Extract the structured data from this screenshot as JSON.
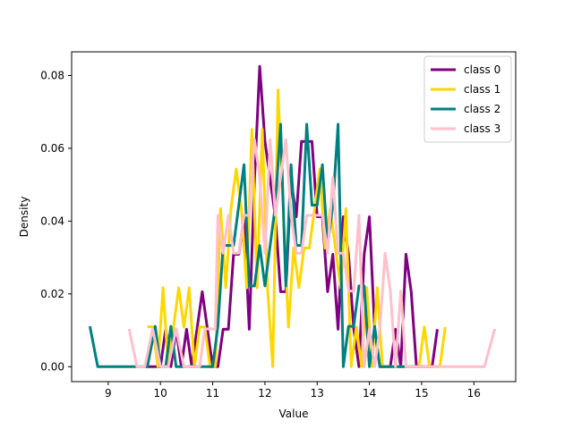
{
  "chart_data": {
    "type": "line",
    "title": "",
    "xlabel": "Value",
    "ylabel": "Density",
    "xlim": [
      8.3,
      16.8
    ],
    "ylim": [
      -0.0041,
      0.0865
    ],
    "xticks": [
      9,
      10,
      11,
      12,
      13,
      14,
      15,
      16
    ],
    "yticks": [
      0.0,
      0.02,
      0.04,
      0.06,
      0.08
    ],
    "ytick_labels": [
      "0.00",
      "0.02",
      "0.04",
      "0.06",
      "0.08"
    ],
    "grid": false,
    "legend_position": "top-right",
    "series": [
      {
        "name": "class 0",
        "color": "#800080",
        "points": [
          [
            9.7,
            0.0
          ],
          [
            9.8,
            0.0
          ],
          [
            9.9,
            0.0
          ],
          [
            10.0,
            0.0
          ],
          [
            10.1,
            0.0103
          ],
          [
            10.2,
            0.0
          ],
          [
            10.3,
            0.0103
          ],
          [
            10.4,
            0.0
          ],
          [
            10.5,
            0.0103
          ],
          [
            10.6,
            0.0
          ],
          [
            10.7,
            0.0103
          ],
          [
            10.8,
            0.0206
          ],
          [
            10.9,
            0.0103
          ],
          [
            11.0,
            0.0
          ],
          [
            11.1,
            0.0
          ],
          [
            11.2,
            0.0103
          ],
          [
            11.3,
            0.0103
          ],
          [
            11.4,
            0.0309
          ],
          [
            11.5,
            0.0309
          ],
          [
            11.6,
            0.0412
          ],
          [
            11.7,
            0.0103
          ],
          [
            11.8,
            0.0515
          ],
          [
            11.9,
            0.0825
          ],
          [
            12.0,
            0.0619
          ],
          [
            12.1,
            0.0515
          ],
          [
            12.2,
            0.0412
          ],
          [
            12.3,
            0.0206
          ],
          [
            12.4,
            0.0206
          ],
          [
            12.5,
            0.0515
          ],
          [
            12.6,
            0.0412
          ],
          [
            12.7,
            0.0619
          ],
          [
            12.8,
            0.0619
          ],
          [
            12.9,
            0.0619
          ],
          [
            13.0,
            0.0412
          ],
          [
            13.1,
            0.0412
          ],
          [
            13.2,
            0.0206
          ],
          [
            13.3,
            0.0309
          ],
          [
            13.4,
            0.0103
          ],
          [
            13.5,
            0.0412
          ],
          [
            13.6,
            0.0309
          ],
          [
            13.7,
            0.0103
          ],
          [
            13.8,
            0.0
          ],
          [
            13.9,
            0.0309
          ],
          [
            14.0,
            0.0412
          ],
          [
            14.1,
            0.0103
          ],
          [
            14.2,
            0.0
          ],
          [
            14.3,
            0.0
          ],
          [
            14.4,
            0.0
          ],
          [
            14.5,
            0.0103
          ],
          [
            14.6,
            0.0
          ],
          [
            14.7,
            0.0309
          ],
          [
            14.8,
            0.0206
          ],
          [
            14.9,
            0.0
          ],
          [
            15.0,
            0.0
          ],
          [
            15.1,
            0.0
          ],
          [
            15.2,
            0.0
          ],
          [
            15.3,
            0.0103
          ]
        ]
      },
      {
        "name": "class 1",
        "color": "#FFD700",
        "points": [
          [
            9.75,
            0.011
          ],
          [
            9.85,
            0.011
          ],
          [
            9.95,
            0.0
          ],
          [
            10.05,
            0.0217
          ],
          [
            10.15,
            0.0
          ],
          [
            10.25,
            0.0109
          ],
          [
            10.35,
            0.0217
          ],
          [
            10.45,
            0.0109
          ],
          [
            10.55,
            0.0217
          ],
          [
            10.65,
            0.0
          ],
          [
            10.75,
            0.0109
          ],
          [
            10.85,
            0.0109
          ],
          [
            10.95,
            0.0
          ],
          [
            11.05,
            0.0
          ],
          [
            11.15,
            0.0434
          ],
          [
            11.25,
            0.0217
          ],
          [
            11.35,
            0.0434
          ],
          [
            11.45,
            0.0543
          ],
          [
            11.55,
            0.0434
          ],
          [
            11.65,
            0.0217
          ],
          [
            11.75,
            0.0652
          ],
          [
            11.85,
            0.0217
          ],
          [
            11.95,
            0.0652
          ],
          [
            12.05,
            0.0217
          ],
          [
            12.15,
            0.0
          ],
          [
            12.25,
            0.076
          ],
          [
            12.35,
            0.0434
          ],
          [
            12.45,
            0.0109
          ],
          [
            12.55,
            0.0326
          ],
          [
            12.65,
            0.0217
          ],
          [
            12.75,
            0.0326
          ],
          [
            12.85,
            0.0326
          ],
          [
            12.95,
            0.0434
          ],
          [
            13.05,
            0.0543
          ],
          [
            13.15,
            0.0326
          ],
          [
            13.25,
            0.0434
          ],
          [
            13.35,
            0.0326
          ],
          [
            13.45,
            0.0217
          ],
          [
            13.55,
            0.0434
          ],
          [
            13.65,
            0.0
          ],
          [
            13.75,
            0.0109
          ],
          [
            13.85,
            0.0
          ],
          [
            13.95,
            0.0217
          ],
          [
            14.05,
            0.0
          ],
          [
            14.15,
            0.0217
          ],
          [
            14.25,
            0.0
          ],
          [
            14.35,
            0.0
          ],
          [
            14.45,
            0.0
          ],
          [
            14.55,
            0.0
          ],
          [
            14.65,
            0.0
          ],
          [
            14.75,
            0.0
          ],
          [
            14.85,
            0.0
          ],
          [
            14.95,
            0.0
          ],
          [
            15.05,
            0.0109
          ],
          [
            15.15,
            0.0
          ],
          [
            15.25,
            0.0
          ],
          [
            15.35,
            0.0
          ],
          [
            15.45,
            0.0109
          ]
        ]
      },
      {
        "name": "class 2",
        "color": "#008080",
        "points": [
          [
            8.65,
            0.0111
          ],
          [
            8.8,
            0.0
          ],
          [
            9.0,
            0.0
          ],
          [
            9.2,
            0.0
          ],
          [
            9.4,
            0.0
          ],
          [
            9.6,
            0.0
          ],
          [
            9.75,
            0.0
          ],
          [
            9.9,
            0.0111
          ],
          [
            10.0,
            0.0
          ],
          [
            10.1,
            0.0
          ],
          [
            10.2,
            0.0111
          ],
          [
            10.3,
            0.0
          ],
          [
            10.4,
            0.0
          ],
          [
            10.5,
            0.0
          ],
          [
            10.6,
            0.0
          ],
          [
            10.7,
            0.0
          ],
          [
            10.8,
            0.0
          ],
          [
            10.9,
            0.0
          ],
          [
            11.0,
            0.0
          ],
          [
            11.1,
            0.0111
          ],
          [
            11.2,
            0.0333
          ],
          [
            11.3,
            0.0333
          ],
          [
            11.4,
            0.0333
          ],
          [
            11.5,
            0.0444
          ],
          [
            11.6,
            0.0555
          ],
          [
            11.7,
            0.0222
          ],
          [
            11.8,
            0.0222
          ],
          [
            11.9,
            0.0333
          ],
          [
            12.0,
            0.0222
          ],
          [
            12.1,
            0.0333
          ],
          [
            12.2,
            0.0444
          ],
          [
            12.3,
            0.0666
          ],
          [
            12.4,
            0.0222
          ],
          [
            12.5,
            0.0555
          ],
          [
            12.6,
            0.0333
          ],
          [
            12.7,
            0.0333
          ],
          [
            12.8,
            0.0666
          ],
          [
            12.9,
            0.0444
          ],
          [
            13.0,
            0.0444
          ],
          [
            13.1,
            0.0555
          ],
          [
            13.2,
            0.0333
          ],
          [
            13.3,
            0.0444
          ],
          [
            13.4,
            0.0666
          ],
          [
            13.5,
            0.0
          ],
          [
            13.6,
            0.0111
          ],
          [
            13.7,
            0.0111
          ],
          [
            13.8,
            0.0222
          ],
          [
            13.9,
            0.0222
          ],
          [
            14.0,
            0.0
          ],
          [
            14.1,
            0.0111
          ],
          [
            14.2,
            0.0
          ],
          [
            14.3,
            0.0
          ],
          [
            14.4,
            0.0
          ],
          [
            14.5,
            0.0
          ],
          [
            14.6,
            0.0
          ],
          [
            14.7,
            0.0
          ],
          [
            14.8,
            0.0
          ],
          [
            14.9,
            0.0
          ]
        ]
      },
      {
        "name": "class 3",
        "color": "#FFC0CB",
        "points": [
          [
            9.4,
            0.0104
          ],
          [
            9.55,
            0.0
          ],
          [
            9.7,
            0.0
          ],
          [
            9.85,
            0.0104
          ],
          [
            10.0,
            0.0
          ],
          [
            10.15,
            0.0
          ],
          [
            10.3,
            0.0104
          ],
          [
            10.45,
            0.0
          ],
          [
            10.6,
            0.0
          ],
          [
            10.75,
            0.0
          ],
          [
            10.85,
            0.0104
          ],
          [
            10.95,
            0.0104
          ],
          [
            11.05,
            0.0104
          ],
          [
            11.1,
            0.0416
          ],
          [
            11.2,
            0.0312
          ],
          [
            11.3,
            0.0416
          ],
          [
            11.4,
            0.0312
          ],
          [
            11.5,
            0.0312
          ],
          [
            11.6,
            0.0416
          ],
          [
            11.7,
            0.0416
          ],
          [
            11.8,
            0.0624
          ],
          [
            11.9,
            0.052
          ],
          [
            12.0,
            0.0312
          ],
          [
            12.1,
            0.0624
          ],
          [
            12.2,
            0.0416
          ],
          [
            12.3,
            0.052
          ],
          [
            12.4,
            0.0624
          ],
          [
            12.5,
            0.0416
          ],
          [
            12.6,
            0.0312
          ],
          [
            12.7,
            0.0312
          ],
          [
            12.8,
            0.0416
          ],
          [
            12.9,
            0.0416
          ],
          [
            13.0,
            0.0416
          ],
          [
            13.1,
            0.0416
          ],
          [
            13.2,
            0.0312
          ],
          [
            13.3,
            0.052
          ],
          [
            13.4,
            0.0312
          ],
          [
            13.5,
            0.0312
          ],
          [
            13.6,
            0.0208
          ],
          [
            13.7,
            0.0208
          ],
          [
            13.8,
            0.0416
          ],
          [
            13.9,
            0.0
          ],
          [
            14.0,
            0.0104
          ],
          [
            14.1,
            0.0
          ],
          [
            14.2,
            0.0104
          ],
          [
            14.3,
            0.0312
          ],
          [
            14.4,
            0.0208
          ],
          [
            14.5,
            0.0
          ],
          [
            14.6,
            0.0208
          ],
          [
            14.7,
            0.0
          ],
          [
            14.8,
            0.0
          ],
          [
            14.9,
            0.0
          ],
          [
            15.0,
            0.0
          ],
          [
            15.2,
            0.0
          ],
          [
            15.4,
            0.0
          ],
          [
            15.6,
            0.0
          ],
          [
            15.8,
            0.0
          ],
          [
            16.0,
            0.0
          ],
          [
            16.2,
            0.0
          ],
          [
            16.4,
            0.0104
          ]
        ]
      }
    ]
  }
}
